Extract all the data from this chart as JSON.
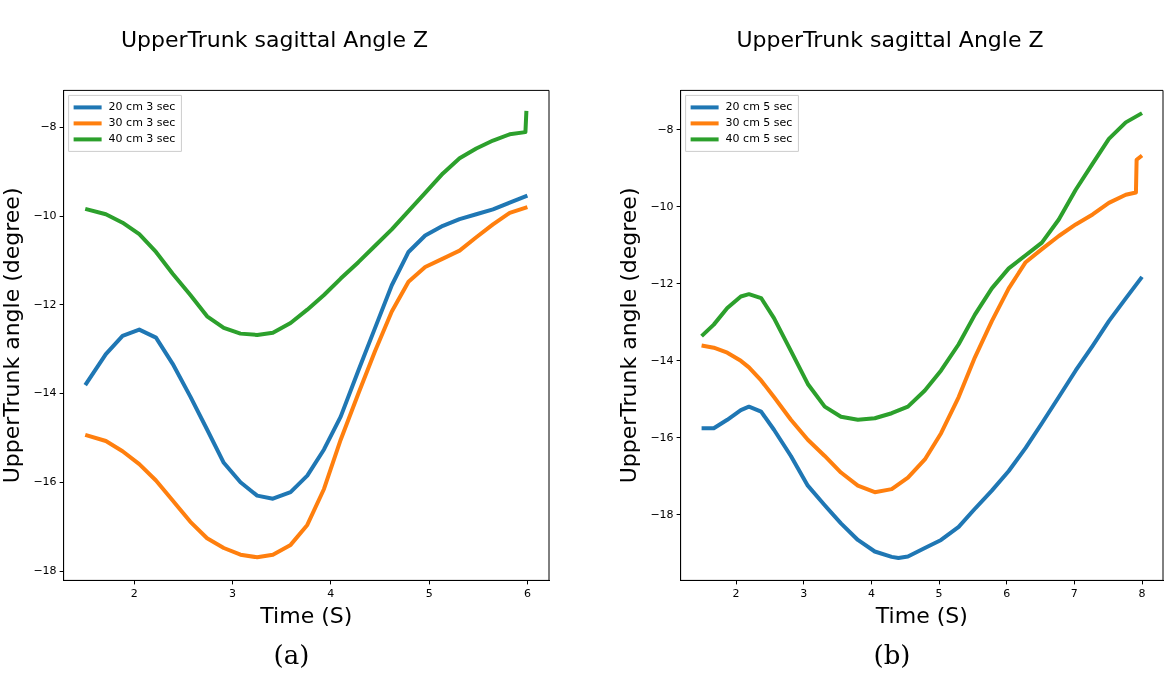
{
  "chart_data": [
    {
      "type": "line",
      "title": "UpperTrunk sagittal Angle Z",
      "xlabel": "Time (S)",
      "ylabel": "UpperTrunk angle (degree)",
      "annotations": [
        "(a)"
      ],
      "xlim": [
        1.28,
        6.22
      ],
      "ylim": [
        -18.21,
        -7.17
      ],
      "xticks": [
        2,
        3,
        4,
        5,
        6
      ],
      "yticks": [
        -18,
        -16,
        -14,
        -12,
        -10,
        -8
      ],
      "grid": false,
      "legend": "top left",
      "marker": "none",
      "line_style": "solid",
      "series": [
        {
          "name": "20 cm 3 sec",
          "color": "#1f77b4",
          "x": [
            1.5,
            1.71,
            1.88,
            2.05,
            2.22,
            2.39,
            2.57,
            2.74,
            2.91,
            3.08,
            3.25,
            3.41,
            3.59,
            3.76,
            3.93,
            4.1,
            4.28,
            4.45,
            4.62,
            4.79,
            4.96,
            5.14,
            5.31,
            5.48,
            5.65,
            5.82,
            6.0
          ],
          "values": [
            -13.81,
            -13.11,
            -12.7,
            -12.56,
            -12.74,
            -13.33,
            -14.07,
            -14.81,
            -15.56,
            -16.0,
            -16.3,
            -16.37,
            -16.22,
            -15.85,
            -15.26,
            -14.52,
            -13.48,
            -12.52,
            -11.56,
            -10.81,
            -10.44,
            -10.22,
            -10.07,
            -9.96,
            -9.85,
            -9.7,
            -9.54
          ]
        },
        {
          "name": "30 cm 3 sec",
          "color": "#ff7f0e",
          "x": [
            1.5,
            1.71,
            1.88,
            2.05,
            2.22,
            2.39,
            2.57,
            2.74,
            2.91,
            3.08,
            3.25,
            3.41,
            3.59,
            3.76,
            3.93,
            4.1,
            4.28,
            4.45,
            4.62,
            4.79,
            4.96,
            5.14,
            5.31,
            5.48,
            5.65,
            5.82,
            6.0
          ],
          "values": [
            -14.93,
            -15.07,
            -15.3,
            -15.59,
            -15.96,
            -16.41,
            -16.89,
            -17.26,
            -17.48,
            -17.63,
            -17.69,
            -17.63,
            -17.41,
            -16.96,
            -16.15,
            -15.04,
            -14.0,
            -13.04,
            -12.15,
            -11.48,
            -11.15,
            -10.96,
            -10.78,
            -10.48,
            -10.19,
            -9.93,
            -9.8
          ]
        },
        {
          "name": "40 cm 3 sec",
          "color": "#2ca02c",
          "x": [
            1.5,
            1.71,
            1.88,
            2.05,
            2.22,
            2.39,
            2.57,
            2.74,
            2.91,
            3.08,
            3.25,
            3.41,
            3.59,
            3.76,
            3.93,
            4.1,
            4.28,
            4.45,
            4.62,
            4.79,
            4.96,
            5.14,
            5.31,
            5.48,
            5.65,
            5.82,
            5.98,
            5.99
          ],
          "values": [
            -9.84,
            -9.96,
            -10.15,
            -10.41,
            -10.81,
            -11.3,
            -11.78,
            -12.26,
            -12.52,
            -12.65,
            -12.68,
            -12.63,
            -12.41,
            -12.11,
            -11.78,
            -11.41,
            -11.04,
            -10.67,
            -10.3,
            -9.89,
            -9.48,
            -9.04,
            -8.7,
            -8.48,
            -8.3,
            -8.16,
            -8.11,
            -7.63
          ]
        }
      ]
    },
    {
      "type": "line",
      "title": "UpperTrunk sagittal Angle Z",
      "xlabel": "Time (S)",
      "ylabel": "UpperTrunk angle (degree)",
      "annotations": [
        "(b)"
      ],
      "xlim": [
        1.18,
        8.31
      ],
      "ylim": [
        -19.7,
        -6.98
      ],
      "xticks": [
        2,
        3,
        4,
        5,
        6,
        7,
        8
      ],
      "yticks": [
        -18,
        -16,
        -14,
        -12,
        -10,
        -8
      ],
      "grid": false,
      "legend": "top left",
      "marker": "none",
      "line_style": "solid",
      "series": [
        {
          "name": "20 cm 5 sec",
          "color": "#1f77b4",
          "x": [
            1.49,
            1.67,
            1.87,
            2.07,
            2.19,
            2.37,
            2.56,
            2.81,
            3.06,
            3.31,
            3.55,
            3.8,
            4.05,
            4.3,
            4.4,
            4.54,
            4.79,
            5.03,
            5.29,
            5.53,
            5.78,
            6.03,
            6.28,
            6.52,
            6.77,
            7.02,
            7.27,
            7.51,
            7.76,
            8.0
          ],
          "values": [
            -15.75,
            -15.75,
            -15.53,
            -15.28,
            -15.19,
            -15.32,
            -15.79,
            -16.47,
            -17.24,
            -17.75,
            -18.22,
            -18.65,
            -18.95,
            -19.09,
            -19.12,
            -19.08,
            -18.86,
            -18.65,
            -18.31,
            -17.84,
            -17.37,
            -16.86,
            -16.26,
            -15.62,
            -14.94,
            -14.25,
            -13.61,
            -12.97,
            -12.38,
            -11.82
          ]
        },
        {
          "name": "30 cm 5 sec",
          "color": "#ff7f0e",
          "x": [
            1.49,
            1.67,
            1.87,
            2.07,
            2.19,
            2.37,
            2.56,
            2.81,
            3.06,
            3.31,
            3.55,
            3.8,
            4.05,
            4.3,
            4.54,
            4.79,
            5.03,
            5.29,
            5.53,
            5.78,
            6.03,
            6.28,
            6.52,
            6.77,
            7.02,
            7.27,
            7.51,
            7.76,
            7.91,
            7.92,
            8.0
          ],
          "values": [
            -13.6,
            -13.66,
            -13.79,
            -14.0,
            -14.17,
            -14.51,
            -14.94,
            -15.53,
            -16.05,
            -16.47,
            -16.9,
            -17.24,
            -17.41,
            -17.33,
            -17.03,
            -16.56,
            -15.88,
            -14.94,
            -13.91,
            -12.97,
            -12.12,
            -11.44,
            -11.1,
            -10.76,
            -10.46,
            -10.2,
            -9.9,
            -9.69,
            -9.63,
            -8.78,
            -8.67
          ]
        },
        {
          "name": "40 cm 5 sec",
          "color": "#2ca02c",
          "x": [
            1.49,
            1.67,
            1.87,
            2.07,
            2.19,
            2.37,
            2.56,
            2.81,
            3.06,
            3.31,
            3.55,
            3.8,
            4.05,
            4.3,
            4.54,
            4.79,
            5.03,
            5.29,
            5.53,
            5.78,
            6.03,
            6.28,
            6.52,
            6.77,
            7.02,
            7.27,
            7.51,
            7.76,
            8.0
          ],
          "values": [
            -13.36,
            -13.06,
            -12.63,
            -12.33,
            -12.27,
            -12.37,
            -12.89,
            -13.74,
            -14.6,
            -15.19,
            -15.45,
            -15.53,
            -15.49,
            -15.36,
            -15.19,
            -14.77,
            -14.25,
            -13.57,
            -12.8,
            -12.12,
            -11.6,
            -11.26,
            -10.93,
            -10.33,
            -9.56,
            -8.88,
            -8.24,
            -7.81,
            -7.57
          ]
        }
      ]
    }
  ]
}
